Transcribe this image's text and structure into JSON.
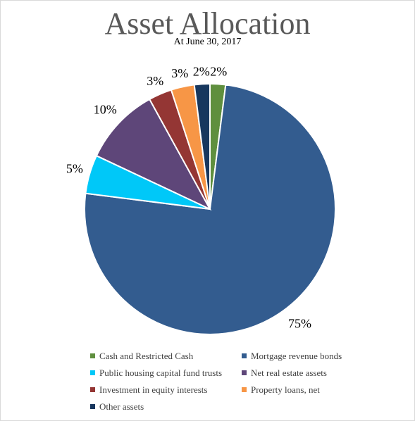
{
  "chart_data": {
    "type": "pie",
    "title": "Asset Allocation",
    "subtitle": "At June 30, 2017",
    "slices": [
      {
        "name": "Cash and Restricted Cash",
        "value": 2,
        "label": "2%",
        "color": "#5f8f3e"
      },
      {
        "name": "Mortgage revenue bonds",
        "value": 75,
        "label": "75%",
        "color": "#335c8f"
      },
      {
        "name": "Public housing capital fund trusts",
        "value": 5,
        "label": "5%",
        "color": "#00c8f8"
      },
      {
        "name": "Net real estate assets",
        "value": 10,
        "label": "10%",
        "color": "#5e4679"
      },
      {
        "name": "Investment in equity interests",
        "value": 3,
        "label": "3%",
        "color": "#943634"
      },
      {
        "name": "Property loans, net",
        "value": 3,
        "label": "3%",
        "color": "#f79646"
      },
      {
        "name": "Other assets",
        "value": 2,
        "label": "2%",
        "color": "#17375e"
      }
    ],
    "legend_position": "bottom"
  }
}
